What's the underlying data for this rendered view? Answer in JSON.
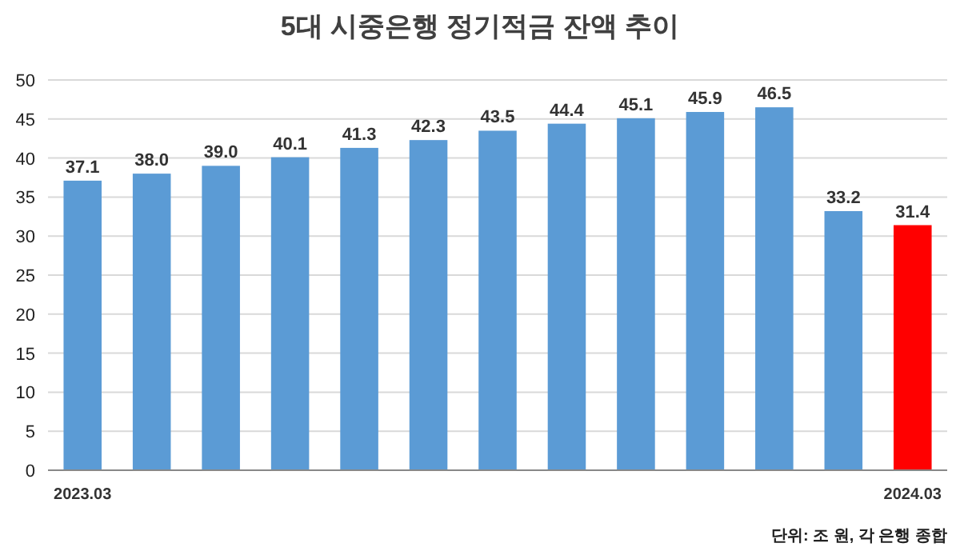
{
  "chart_data": {
    "type": "bar",
    "title": "5대 시중은행 정기적금 잔액 추이",
    "categories": [
      "2023.03",
      null,
      null,
      null,
      null,
      null,
      null,
      null,
      null,
      null,
      null,
      null,
      "2024.03"
    ],
    "values": [
      37.1,
      38.0,
      39.0,
      40.1,
      41.3,
      42.3,
      43.5,
      44.4,
      45.1,
      45.9,
      46.5,
      33.2,
      31.4
    ],
    "value_labels": [
      "37.1",
      "38.0",
      "39.0",
      "40.1",
      "41.3",
      "42.3",
      "43.5",
      "44.4",
      "45.1",
      "45.9",
      "46.5",
      "33.2",
      "31.4"
    ],
    "colors": [
      "#5b9bd5",
      "#5b9bd5",
      "#5b9bd5",
      "#5b9bd5",
      "#5b9bd5",
      "#5b9bd5",
      "#5b9bd5",
      "#5b9bd5",
      "#5b9bd5",
      "#5b9bd5",
      "#5b9bd5",
      "#5b9bd5",
      "#ff0000"
    ],
    "ylim": [
      0,
      50
    ],
    "yticks": [
      0,
      5,
      10,
      15,
      20,
      25,
      30,
      35,
      40,
      45,
      50
    ],
    "grid": "y",
    "annotations": [
      "단위: 조 원, 각 은행 종합"
    ]
  }
}
